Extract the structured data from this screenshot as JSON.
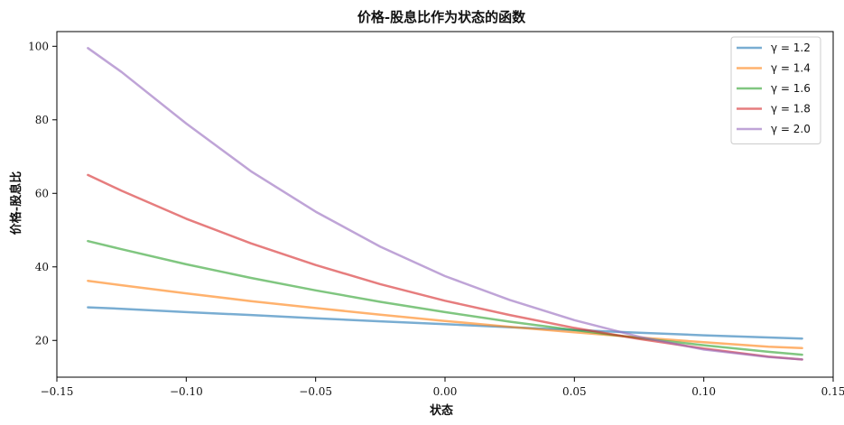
{
  "chart_data": {
    "type": "line",
    "title": "价格-股息比作为状态的函数",
    "xlabel": "状态",
    "ylabel": "价格-股息比",
    "xlim": [
      -0.15,
      0.15
    ],
    "ylim": [
      10,
      104
    ],
    "xticks": [
      -0.15,
      -0.1,
      -0.05,
      0.0,
      0.05,
      0.1,
      0.15
    ],
    "xtick_labels": [
      "−0.15",
      "−0.10",
      "−0.05",
      "0.00",
      "0.05",
      "0.10",
      "0.15"
    ],
    "yticks": [
      20,
      40,
      60,
      80,
      100
    ],
    "ytick_labels": [
      "20",
      "40",
      "60",
      "80",
      "100"
    ],
    "grid": false,
    "legend_position": "top-right",
    "x": [
      -0.138,
      -0.125,
      -0.1,
      -0.075,
      -0.05,
      -0.025,
      0.0,
      0.025,
      0.05,
      0.075,
      0.1,
      0.125,
      0.138
    ],
    "series": [
      {
        "name": "γ = 1.2",
        "color": "#1f77b4",
        "values": [
          29.0,
          28.6,
          27.7,
          26.9,
          26.0,
          25.2,
          24.4,
          23.6,
          22.8,
          22.1,
          21.4,
          20.8,
          20.5
        ]
      },
      {
        "name": "γ = 1.4",
        "color": "#ff7f0e",
        "values": [
          36.2,
          35.0,
          32.8,
          30.7,
          28.8,
          27.0,
          25.3,
          23.7,
          22.2,
          20.8,
          19.5,
          18.3,
          17.9
        ]
      },
      {
        "name": "γ = 1.6",
        "color": "#2ca02c",
        "values": [
          47.0,
          44.8,
          40.7,
          37.0,
          33.6,
          30.5,
          27.7,
          25.1,
          22.8,
          20.6,
          18.7,
          16.9,
          16.1
        ]
      },
      {
        "name": "γ = 1.8",
        "color": "#d62728",
        "values": [
          65.0,
          60.7,
          53.1,
          46.4,
          40.5,
          35.3,
          30.8,
          26.9,
          23.4,
          20.4,
          17.8,
          15.6,
          14.8
        ]
      },
      {
        "name": "γ = 2.0",
        "color": "#9467bd",
        "values": [
          99.5,
          93.0,
          79.0,
          66.0,
          55.0,
          45.5,
          37.5,
          31.0,
          25.5,
          21.0,
          17.5,
          15.5,
          14.8
        ]
      }
    ]
  }
}
